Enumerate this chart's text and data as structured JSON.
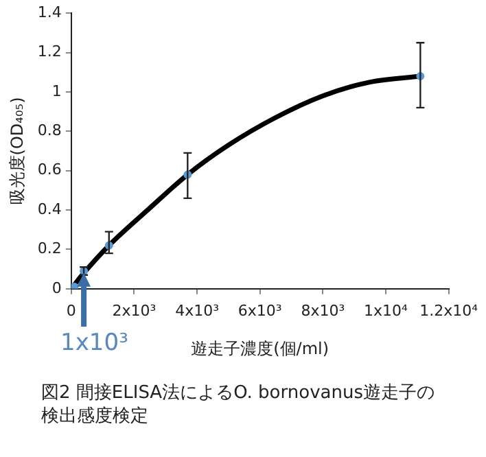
{
  "chart_data": {
    "type": "scatter",
    "title": "図2 間接ELISA法によるO. bornovanus遊走子の検出感度検定",
    "xlabel": "遊走子濃度(個/ml)",
    "ylabel": "吸光度(OD₄₀₅)",
    "xlim": [
      0,
      12000
    ],
    "xticks": [
      0,
      {
        "value": 2000,
        "label": "2x10³"
      },
      {
        "value": 4000,
        "label": "4x10³"
      },
      {
        "value": 6000,
        "label": "6x10³"
      },
      {
        "value": 8000,
        "label": "8x10³"
      },
      {
        "value": 10000,
        "label": "1x10⁴"
      },
      {
        "value": 12000,
        "label": "1.2x10⁴"
      }
    ],
    "ylim": [
      0,
      1.4
    ],
    "yticks": [
      0,
      0.2,
      0.4,
      0.6,
      0.8,
      1,
      1.2,
      1.4
    ],
    "series": [
      {
        "type": "line",
        "color": "#000000",
        "marker": "none",
        "x": [
          0,
          400,
          1200,
          2500,
          3700,
          5000,
          6500,
          8000,
          9500,
          11100
        ],
        "values": [
          0,
          0.08,
          0.22,
          0.41,
          0.58,
          0.73,
          0.87,
          0.98,
          1.05,
          1.08
        ]
      },
      {
        "color": "#5b9bd5",
        "marker": "circle",
        "x": [
          100,
          400,
          1200,
          3700,
          11100
        ],
        "values": [
          0.01,
          0.09,
          0.22,
          0.58,
          1.08
        ],
        "errors": [
          null,
          [
            0.07,
            0.11
          ],
          [
            0.18,
            0.29
          ],
          [
            0.46,
            0.69
          ],
          [
            0.92,
            1.25
          ]
        ]
      }
    ],
    "annotations": [
      {
        "text": "1x10³",
        "x": 400,
        "y": 0.08
      }
    ]
  }
}
